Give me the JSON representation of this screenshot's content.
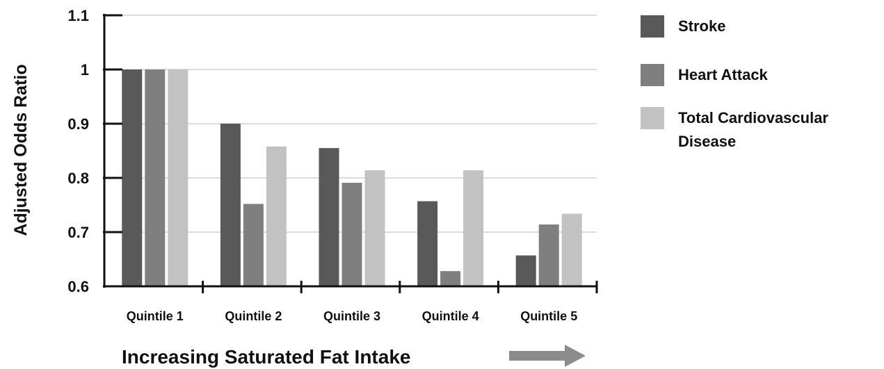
{
  "chart_data": {
    "type": "bar",
    "title": "",
    "xlabel": "Increasing Saturated Fat Intake",
    "ylabel": "Adjusted Odds Ratio",
    "ylim": [
      0.6,
      1.1
    ],
    "yticks": [
      "0.6",
      "0.7",
      "0.8",
      "0.9",
      "1",
      "1.1"
    ],
    "categories": [
      "Quintile 1",
      "Quintile 2",
      "Quintile 3",
      "Quintile 4",
      "Quintile 5"
    ],
    "grid": true,
    "legend_position": "right",
    "series": [
      {
        "name": "Stroke",
        "color": "#595959",
        "values": [
          1.0,
          0.9,
          0.855,
          0.757,
          0.657
        ]
      },
      {
        "name": "Heart Attack",
        "color": "#7f7f81",
        "values": [
          1.0,
          0.752,
          0.791,
          0.628,
          0.714
        ]
      },
      {
        "name": "Total Cardiovascular Disease",
        "legend_lines": [
          "Total Cardiovascular",
          "Disease"
        ],
        "color": "#c2c2c2",
        "values": [
          1.0,
          0.858,
          0.814,
          0.814,
          0.734
        ]
      }
    ],
    "arrow_icon": "right-arrow-icon",
    "arrow_color": "#8c8c8c"
  }
}
